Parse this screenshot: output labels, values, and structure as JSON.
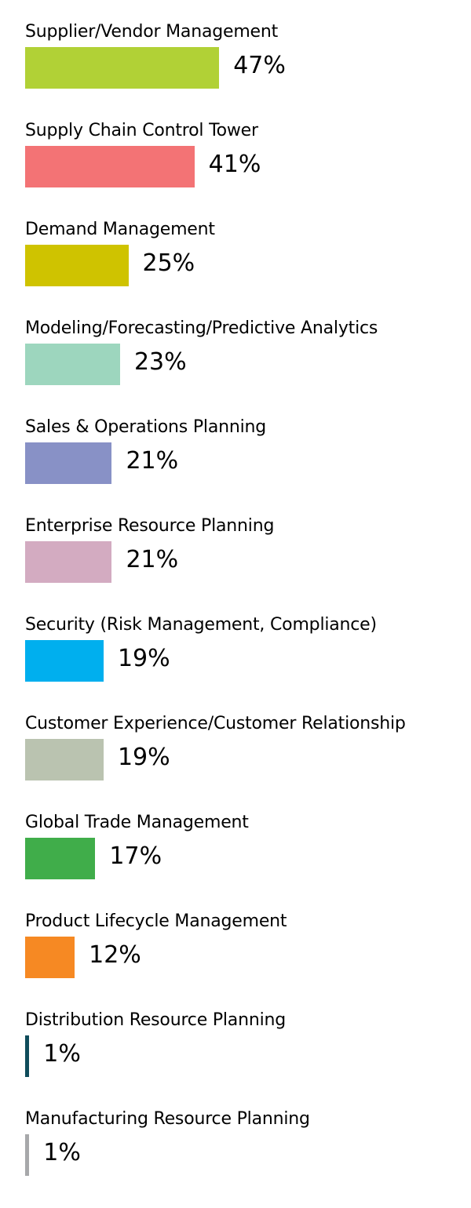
{
  "chart_data": {
    "type": "bar",
    "orientation": "horizontal",
    "categories": [
      "Supplier/Vendor Management",
      "Supply Chain Control Tower",
      "Demand Management",
      "Modeling/Forecasting/Predictive Analytics",
      "Sales & Operations Planning",
      "Enterprise Resource Planning",
      "Security (Risk Management, Compliance)",
      "Customer Experience/Customer Relationship",
      "Global Trade Management",
      "Product Lifecycle Management",
      "Distribution Resource Planning",
      "Manufacturing Resource Planning"
    ],
    "values": [
      47,
      41,
      25,
      23,
      21,
      21,
      19,
      19,
      17,
      12,
      1,
      1
    ],
    "value_labels": [
      "47%",
      "41%",
      "25%",
      "23%",
      "21%",
      "21%",
      "19%",
      "19%",
      "17%",
      "12%",
      "1%",
      "1%"
    ],
    "colors": [
      "#b1d136",
      "#f37375",
      "#cfc300",
      "#9dd6be",
      "#8891c6",
      "#d3abc1",
      "#00afee",
      "#bac3b0",
      "#40ad4a",
      "#f68923",
      "#0f4c5b",
      "#a7a8aa"
    ],
    "unit": "%",
    "xlim": [
      0,
      100
    ],
    "grid": false,
    "legend": "none"
  }
}
